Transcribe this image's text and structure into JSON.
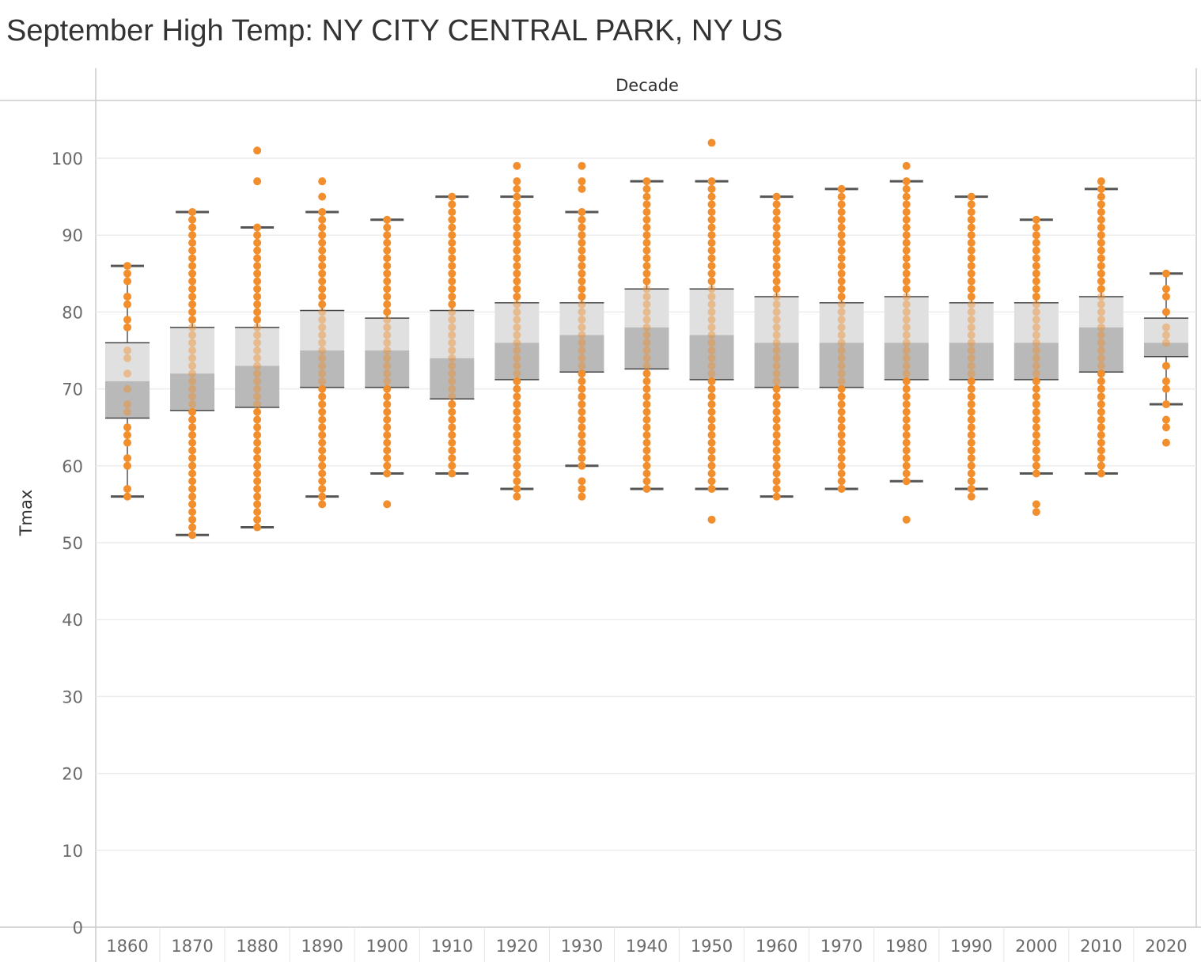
{
  "title": "September High Temp: NY CITY CENTRAL PARK, NY US",
  "chart_data": {
    "type": "box",
    "title": "September High Temp: NY CITY CENTRAL PARK, NY US",
    "column_header": "Decade",
    "xlabel": "",
    "ylabel": "Tmax",
    "ylim": [
      0,
      105
    ],
    "yticks": [
      0,
      10,
      20,
      30,
      40,
      50,
      60,
      70,
      80,
      90,
      100
    ],
    "grid": true,
    "categories": [
      "1860",
      "1870",
      "1880",
      "1890",
      "1900",
      "1910",
      "1920",
      "1930",
      "1940",
      "1950",
      "1960",
      "1970",
      "1980",
      "1990",
      "2000",
      "2010",
      "2020"
    ],
    "boxes": [
      {
        "decade": "1860",
        "whisker_low": 56,
        "q1": 66.2,
        "median": 71,
        "q3": 76,
        "whisker_high": 86
      },
      {
        "decade": "1870",
        "whisker_low": 51,
        "q1": 67.2,
        "median": 72,
        "q3": 78,
        "whisker_high": 93
      },
      {
        "decade": "1880",
        "whisker_low": 52,
        "q1": 67.6,
        "median": 73,
        "q3": 78,
        "whisker_high": 91
      },
      {
        "decade": "1890",
        "whisker_low": 56,
        "q1": 70.2,
        "median": 75,
        "q3": 80.2,
        "whisker_high": 93
      },
      {
        "decade": "1900",
        "whisker_low": 59,
        "q1": 70.2,
        "median": 75,
        "q3": 79.2,
        "whisker_high": 92
      },
      {
        "decade": "1910",
        "whisker_low": 59,
        "q1": 68.7,
        "median": 74,
        "q3": 80.2,
        "whisker_high": 95
      },
      {
        "decade": "1920",
        "whisker_low": 57,
        "q1": 71.2,
        "median": 76,
        "q3": 81.2,
        "whisker_high": 95
      },
      {
        "decade": "1930",
        "whisker_low": 60,
        "q1": 72.2,
        "median": 77,
        "q3": 81.2,
        "whisker_high": 93
      },
      {
        "decade": "1940",
        "whisker_low": 57,
        "q1": 72.6,
        "median": 78,
        "q3": 83,
        "whisker_high": 97
      },
      {
        "decade": "1950",
        "whisker_low": 57,
        "q1": 71.2,
        "median": 77,
        "q3": 83,
        "whisker_high": 97
      },
      {
        "decade": "1960",
        "whisker_low": 56,
        "q1": 70.2,
        "median": 76,
        "q3": 82,
        "whisker_high": 95
      },
      {
        "decade": "1970",
        "whisker_low": 57,
        "q1": 70.2,
        "median": 76,
        "q3": 81.2,
        "whisker_high": 96
      },
      {
        "decade": "1980",
        "whisker_low": 58,
        "q1": 71.2,
        "median": 76,
        "q3": 82,
        "whisker_high": 97
      },
      {
        "decade": "1990",
        "whisker_low": 57,
        "q1": 71.2,
        "median": 76,
        "q3": 81.2,
        "whisker_high": 95
      },
      {
        "decade": "2000",
        "whisker_low": 59,
        "q1": 71.2,
        "median": 76,
        "q3": 81.2,
        "whisker_high": 92
      },
      {
        "decade": "2010",
        "whisker_low": 59,
        "q1": 72.2,
        "median": 78,
        "q3": 82,
        "whisker_high": 96
      },
      {
        "decade": "2020",
        "whisker_low": 68,
        "q1": 74.2,
        "median": 76,
        "q3": 79.2,
        "whisker_high": 85
      }
    ],
    "outliers": [
      {
        "decade": "1880",
        "values": [
          97,
          101
        ]
      },
      {
        "decade": "1890",
        "values": [
          55,
          95,
          97
        ]
      },
      {
        "decade": "1900",
        "values": [
          55
        ]
      },
      {
        "decade": "1920",
        "values": [
          56,
          96,
          97,
          99
        ]
      },
      {
        "decade": "1930",
        "values": [
          56,
          57,
          58,
          96,
          97,
          99
        ]
      },
      {
        "decade": "1950",
        "values": [
          53,
          102
        ]
      },
      {
        "decade": "1980",
        "values": [
          53,
          99
        ]
      },
      {
        "decade": "1990",
        "values": [
          56
        ]
      },
      {
        "decade": "2000",
        "values": [
          54,
          55
        ]
      },
      {
        "decade": "2010",
        "values": [
          97
        ]
      },
      {
        "decade": "2020",
        "values": [
          63,
          65,
          66
        ]
      }
    ],
    "colors": {
      "points": "#f28e2b",
      "upper_box": "#e0e0e0",
      "lower_box": "#b9b9b9",
      "whisker": "#555555",
      "grid": "#ececec",
      "axis": "#cccccc"
    }
  }
}
